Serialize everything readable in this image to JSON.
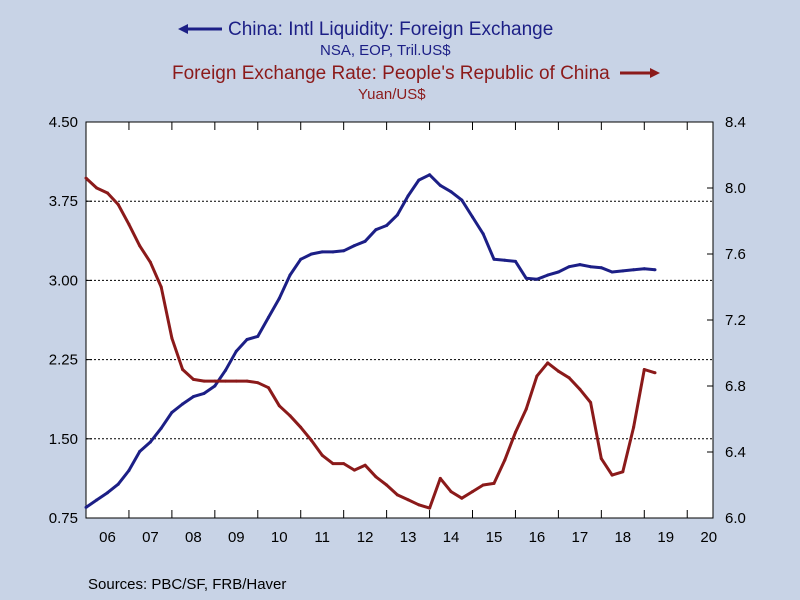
{
  "legend": {
    "series1": {
      "title": "China: Intl Liquidity: Foreign Exchange",
      "subtitle": "NSA, EOP, Tril.US$",
      "color": "#1c1f86",
      "arrow": "left-arrow-icon"
    },
    "series2": {
      "title": "Foreign Exchange Rate: People's Republic of China",
      "subtitle": "Yuan/US$",
      "color": "#8b1a1a",
      "arrow": "right-arrow-icon"
    }
  },
  "source": "Sources:  PBC/SF, FRB/Haver",
  "chart_data": {
    "type": "line",
    "title": "",
    "x_ticks": [
      "06",
      "07",
      "08",
      "09",
      "10",
      "11",
      "12",
      "13",
      "14",
      "15",
      "16",
      "17",
      "18",
      "19",
      "20"
    ],
    "xlim": [
      2006,
      2020.6
    ],
    "y_left": {
      "ticks": [
        "0.75",
        "1.50",
        "2.25",
        "3.00",
        "3.75",
        "4.50"
      ],
      "range": [
        0.75,
        4.5
      ]
    },
    "y_right": {
      "ticks": [
        "6.0",
        "6.4",
        "6.8",
        "7.2",
        "7.6",
        "8.0",
        "8.4"
      ],
      "range": [
        6.0,
        8.4
      ]
    },
    "gridlines_left": [
      1.5,
      2.25,
      3.0,
      3.75
    ],
    "series": [
      {
        "name": "China: Intl Liquidity: Foreign Exchange",
        "axis": "left",
        "color": "#1c1f86",
        "x": [
          2006.0,
          2006.25,
          2006.5,
          2006.75,
          2007.0,
          2007.25,
          2007.5,
          2007.75,
          2008.0,
          2008.25,
          2008.5,
          2008.75,
          2009.0,
          2009.25,
          2009.5,
          2009.75,
          2010.0,
          2010.25,
          2010.5,
          2010.75,
          2011.0,
          2011.25,
          2011.5,
          2011.75,
          2012.0,
          2012.25,
          2012.5,
          2012.75,
          2013.0,
          2013.25,
          2013.5,
          2013.75,
          2014.0,
          2014.25,
          2014.5,
          2014.75,
          2015.0,
          2015.25,
          2015.5,
          2015.75,
          2016.0,
          2016.25,
          2016.5,
          2016.75,
          2017.0,
          2017.25,
          2017.5,
          2017.75,
          2018.0,
          2018.25,
          2018.5,
          2018.75,
          2019.0,
          2019.25
        ],
        "values": [
          0.85,
          0.92,
          0.99,
          1.07,
          1.2,
          1.38,
          1.47,
          1.6,
          1.75,
          1.83,
          1.9,
          1.93,
          2.0,
          2.15,
          2.33,
          2.44,
          2.47,
          2.65,
          2.83,
          3.05,
          3.2,
          3.25,
          3.27,
          3.27,
          3.28,
          3.33,
          3.37,
          3.48,
          3.52,
          3.62,
          3.8,
          3.95,
          4.0,
          3.9,
          3.84,
          3.76,
          3.6,
          3.44,
          3.2,
          3.19,
          3.18,
          3.02,
          3.01,
          3.05,
          3.08,
          3.13,
          3.15,
          3.13,
          3.12,
          3.08,
          3.09,
          3.1,
          3.11,
          3.1
        ]
      },
      {
        "name": "Foreign Exchange Rate: People's Republic of China",
        "axis": "right",
        "color": "#8b1a1a",
        "x": [
          2006.0,
          2006.25,
          2006.5,
          2006.75,
          2007.0,
          2007.25,
          2007.5,
          2007.75,
          2008.0,
          2008.25,
          2008.5,
          2008.75,
          2009.0,
          2009.25,
          2009.5,
          2009.75,
          2010.0,
          2010.25,
          2010.5,
          2010.75,
          2011.0,
          2011.25,
          2011.5,
          2011.75,
          2012.0,
          2012.25,
          2012.5,
          2012.75,
          2013.0,
          2013.25,
          2013.5,
          2013.75,
          2014.0,
          2014.25,
          2014.5,
          2014.75,
          2015.0,
          2015.25,
          2015.5,
          2015.75,
          2016.0,
          2016.25,
          2016.5,
          2016.75,
          2017.0,
          2017.25,
          2017.5,
          2017.75,
          2018.0,
          2018.25,
          2018.5,
          2018.75,
          2019.0,
          2019.25
        ],
        "values": [
          8.06,
          8.0,
          7.97,
          7.9,
          7.78,
          7.65,
          7.55,
          7.4,
          7.09,
          6.9,
          6.84,
          6.83,
          6.83,
          6.83,
          6.83,
          6.83,
          6.82,
          6.79,
          6.68,
          6.62,
          6.55,
          6.47,
          6.38,
          6.33,
          6.33,
          6.29,
          6.32,
          6.25,
          6.2,
          6.14,
          6.11,
          6.08,
          6.06,
          6.24,
          6.16,
          6.12,
          6.16,
          6.2,
          6.21,
          6.35,
          6.52,
          6.66,
          6.86,
          6.94,
          6.89,
          6.85,
          6.78,
          6.7,
          6.36,
          6.26,
          6.28,
          6.55,
          6.9,
          6.88
        ]
      }
    ]
  }
}
